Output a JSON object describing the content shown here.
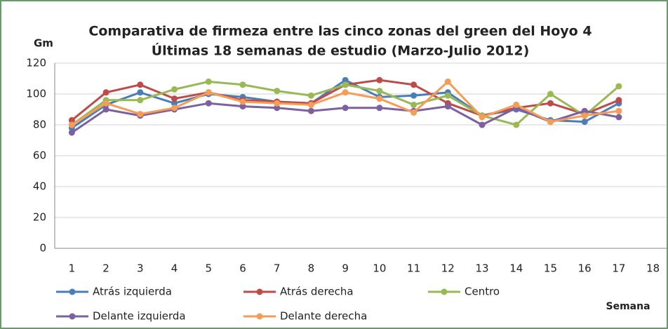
{
  "chart_data": {
    "type": "line",
    "title": [
      "Comparativa de firmeza entre las cinco zonas del green del Hoyo 4",
      "Últimas 18 semanas de estudio (Marzo-Julio 2012)"
    ],
    "y_label": "Gm",
    "x_label": "Semana",
    "categories": [
      "1",
      "2",
      "3",
      "4",
      "5",
      "6",
      "7",
      "8",
      "9",
      "10",
      "11",
      "12",
      "13",
      "14",
      "15",
      "16",
      "17",
      "18"
    ],
    "ylim": [
      0,
      120
    ],
    "yticks": [
      0,
      20,
      40,
      60,
      80,
      100,
      120
    ],
    "grid": true,
    "series": [
      {
        "name": "Atrás izquierda",
        "color": "#4a7ebb",
        "values": [
          78,
          93,
          101,
          94,
          100,
          98,
          95,
          94,
          109,
          98,
          99,
          101,
          86,
          90,
          83,
          82,
          94,
          null
        ]
      },
      {
        "name": "Atrás derecha",
        "color": "#be4b48",
        "values": [
          83,
          101,
          106,
          97,
          101,
          96,
          95,
          94,
          106,
          109,
          106,
          94,
          86,
          91,
          94,
          87,
          96,
          null
        ]
      },
      {
        "name": "Centro",
        "color": "#98b954",
        "values": [
          80,
          96,
          96,
          103,
          108,
          106,
          102,
          99,
          106,
          102,
          93,
          99,
          86,
          80,
          100,
          86,
          105,
          null
        ]
      },
      {
        "name": "Delante izquierda",
        "color": "#7d60a0",
        "values": [
          75,
          90,
          86,
          90,
          94,
          92,
          91,
          89,
          91,
          91,
          89,
          92,
          80,
          91,
          82,
          89,
          85,
          null
        ]
      },
      {
        "name": "Delante derecha",
        "color": "#f59d56",
        "values": [
          80,
          94,
          87,
          91,
          101,
          95,
          94,
          93,
          101,
          97,
          88,
          108,
          85,
          93,
          82,
          86,
          89,
          null
        ]
      }
    ]
  }
}
